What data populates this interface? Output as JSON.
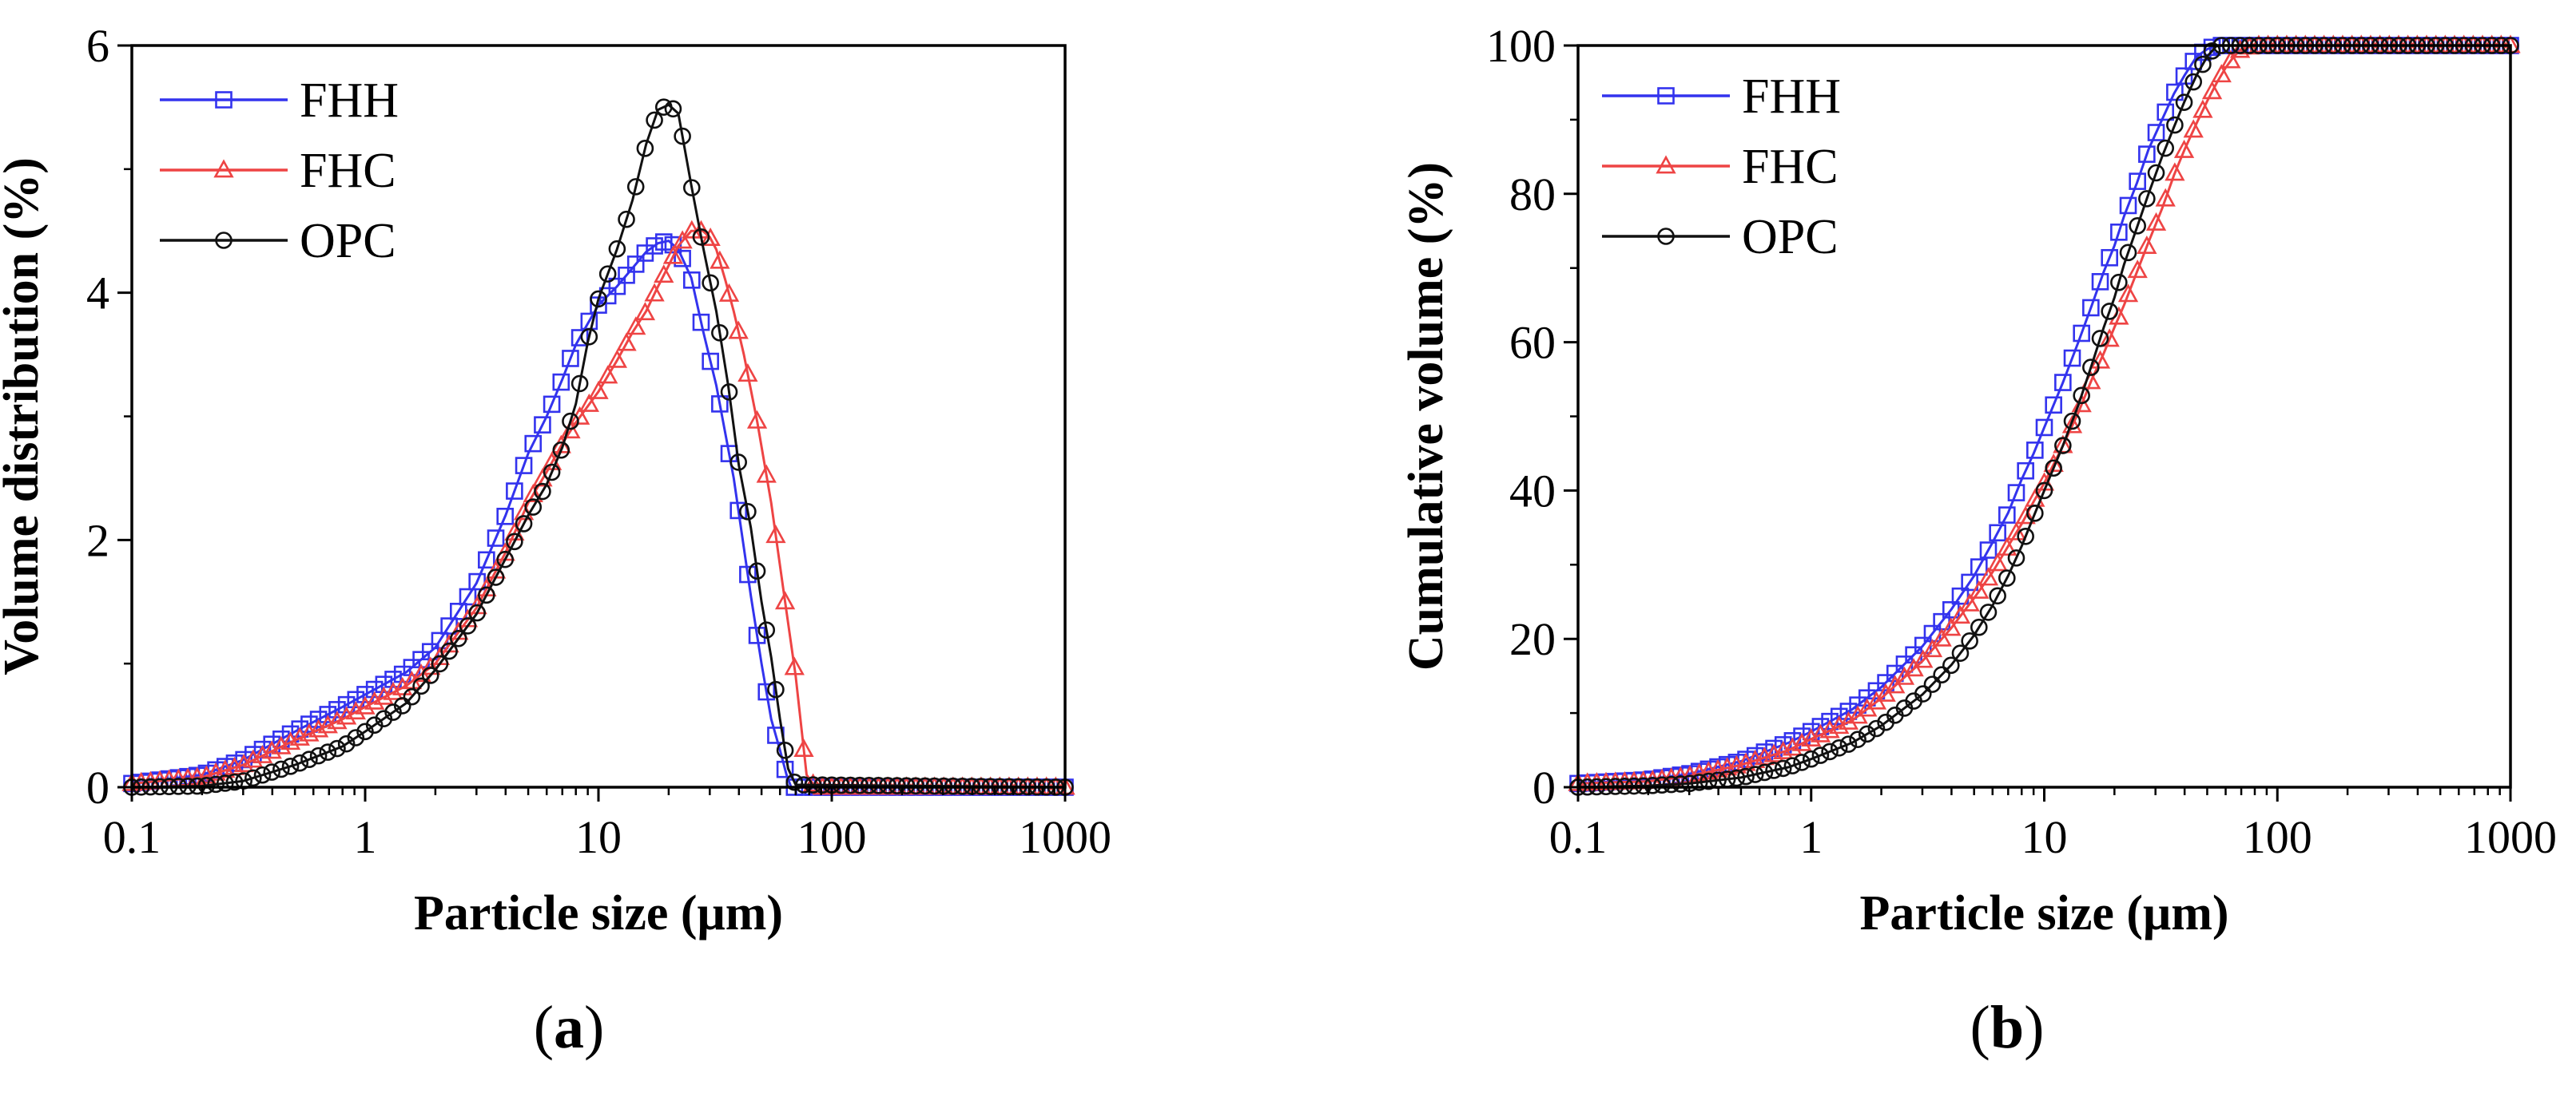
{
  "figure": {
    "panel_labels": [
      {
        "open": "(",
        "letter": "a",
        "close": ")"
      },
      {
        "open": "(",
        "letter": "b",
        "close": ")"
      }
    ]
  },
  "colors": {
    "FHH": "#3333ee",
    "FHC": "#ee4444",
    "OPC": "#111111",
    "axis": "#000000"
  },
  "chart_data": [
    {
      "type": "scatter",
      "panel": "a",
      "xscale": "log",
      "xlabel": "Particle size (μm)",
      "ylabel": "Volume distribution (%)",
      "xlim": [
        0.1,
        1000
      ],
      "ylim": [
        0,
        6
      ],
      "xticks": [
        0.1,
        1,
        10,
        100,
        1000
      ],
      "xtick_labels": [
        "0.1",
        "1",
        "10",
        "100",
        "1000"
      ],
      "yticks": [
        0,
        2,
        4,
        6
      ],
      "ytick_labels": [
        "0",
        "2",
        "4",
        "6"
      ],
      "legend_position": "top-left",
      "series": [
        {
          "name": "FHH",
          "marker": "square",
          "color": "#3333ee",
          "x": [
            0.1,
            0.2,
            0.3,
            0.5,
            0.8,
            1,
            1.5,
            2,
            3,
            4,
            5,
            6,
            7,
            8,
            9,
            10,
            12,
            14,
            16,
            18,
            20,
            22,
            25,
            28,
            32,
            38,
            45,
            50,
            55,
            60,
            64,
            67,
            100,
            1000
          ],
          "y": [
            0.03,
            0.1,
            0.22,
            0.45,
            0.65,
            0.75,
            0.93,
            1.13,
            1.65,
            2.2,
            2.7,
            3.0,
            3.3,
            3.58,
            3.75,
            3.9,
            4.05,
            4.2,
            4.33,
            4.4,
            4.42,
            4.35,
            4.12,
            3.7,
            3.25,
            2.5,
            1.55,
            1.0,
            0.55,
            0.3,
            0.1,
            0.0,
            0.0,
            0.0
          ]
        },
        {
          "name": "FHC",
          "marker": "triangle",
          "color": "#ee4444",
          "x": [
            0.1,
            0.2,
            0.3,
            0.5,
            0.8,
            1,
            1.5,
            2,
            3,
            4,
            5,
            6,
            7,
            8,
            10,
            12,
            14,
            16,
            18,
            20,
            22,
            25,
            28,
            30,
            32,
            35,
            38,
            42,
            48,
            55,
            62,
            70,
            78,
            85,
            1000
          ],
          "y": [
            0.03,
            0.08,
            0.18,
            0.38,
            0.55,
            0.65,
            0.82,
            1.0,
            1.45,
            1.9,
            2.3,
            2.55,
            2.78,
            2.95,
            3.2,
            3.45,
            3.68,
            3.85,
            4.05,
            4.22,
            4.38,
            4.5,
            4.5,
            4.45,
            4.35,
            4.1,
            3.85,
            3.5,
            2.95,
            2.3,
            1.6,
            0.9,
            0.1,
            0.0,
            0.0
          ]
        },
        {
          "name": "OPC",
          "marker": "circle",
          "color": "#111111",
          "x": [
            0.1,
            0.2,
            0.3,
            0.5,
            0.8,
            1,
            1.5,
            2,
            3,
            4,
            5,
            6,
            7,
            8,
            9,
            10,
            12,
            14,
            16,
            18,
            20,
            22,
            25,
            28,
            32,
            36,
            40,
            45,
            50,
            55,
            60,
            65,
            70,
            1000
          ],
          "y": [
            0.0,
            0.01,
            0.05,
            0.18,
            0.33,
            0.45,
            0.68,
            0.95,
            1.4,
            1.85,
            2.2,
            2.45,
            2.75,
            3.1,
            3.6,
            3.95,
            4.35,
            4.75,
            5.2,
            5.48,
            5.52,
            5.45,
            4.87,
            4.38,
            3.85,
            3.25,
            2.6,
            2.1,
            1.5,
            1.05,
            0.55,
            0.15,
            0.02,
            0.0
          ]
        }
      ]
    },
    {
      "type": "scatter",
      "panel": "b",
      "xscale": "log",
      "xlabel": "Particle size (μm)",
      "ylabel": "Cumulative volume (%)",
      "xlim": [
        0.1,
        1000
      ],
      "ylim": [
        0,
        100
      ],
      "xticks": [
        0.1,
        1,
        10,
        100,
        1000
      ],
      "xtick_labels": [
        "0.1",
        "1",
        "10",
        "100",
        "1000"
      ],
      "yticks": [
        0,
        20,
        40,
        60,
        80,
        100
      ],
      "ytick_labels": [
        "0",
        "20",
        "40",
        "60",
        "80",
        "100"
      ],
      "legend_position": "top-left",
      "series": [
        {
          "name": "FHH",
          "marker": "square",
          "color": "#3333ee",
          "x": [
            0.1,
            0.2,
            0.3,
            0.5,
            0.8,
            1,
            1.5,
            2,
            3,
            4,
            5,
            6,
            7,
            8,
            9,
            10,
            12,
            14,
            16,
            18,
            20,
            22,
            25,
            28,
            32,
            36,
            40,
            45,
            50,
            55,
            60,
            1000
          ],
          "y": [
            0.5,
            1.0,
            1.8,
            3.5,
            6.0,
            7.5,
            10.5,
            13.5,
            19.0,
            24.0,
            28.5,
            33.0,
            37.0,
            41.5,
            45.0,
            48.5,
            54.5,
            60.0,
            65.0,
            69.5,
            73.0,
            77.0,
            81.5,
            86.0,
            90.0,
            93.5,
            96.0,
            98.5,
            99.5,
            100,
            100,
            100
          ]
        },
        {
          "name": "FHC",
          "marker": "triangle",
          "color": "#ee4444",
          "x": [
            0.1,
            0.2,
            0.3,
            0.5,
            0.8,
            1,
            1.5,
            2,
            3,
            4,
            5,
            6,
            7,
            8,
            9,
            10,
            12,
            14,
            16,
            18,
            20,
            22,
            25,
            28,
            32,
            36,
            40,
            45,
            50,
            55,
            60,
            65,
            70,
            80,
            1000
          ],
          "y": [
            0.5,
            0.8,
            1.5,
            3.0,
            5.0,
            6.5,
            9.0,
            12.0,
            17.0,
            21.5,
            25.5,
            29.0,
            32.5,
            35.5,
            38.5,
            41.0,
            46.0,
            50.5,
            55.0,
            58.5,
            62.0,
            65.0,
            69.5,
            73.5,
            78.0,
            82.5,
            86.0,
            89.5,
            92.5,
            95.0,
            97.0,
            98.5,
            99.5,
            100,
            100
          ]
        },
        {
          "name": "OPC",
          "marker": "circle",
          "color": "#111111",
          "x": [
            0.1,
            0.2,
            0.3,
            0.5,
            0.8,
            1,
            1.5,
            2,
            3,
            4,
            5,
            6,
            7,
            8,
            9,
            10,
            12,
            14,
            16,
            18,
            20,
            22,
            25,
            28,
            32,
            36,
            40,
            45,
            50,
            55,
            1000
          ],
          "y": [
            0.0,
            0.2,
            0.5,
            1.3,
            2.7,
            3.8,
            6.0,
            8.3,
            12.5,
            16.5,
            20.5,
            24.5,
            28.5,
            32.5,
            36.5,
            40.0,
            46.0,
            51.5,
            57.0,
            62.0,
            66.0,
            70.5,
            75.5,
            80.0,
            85.0,
            89.0,
            92.5,
            96.0,
            98.5,
            100,
            100
          ]
        }
      ]
    }
  ]
}
